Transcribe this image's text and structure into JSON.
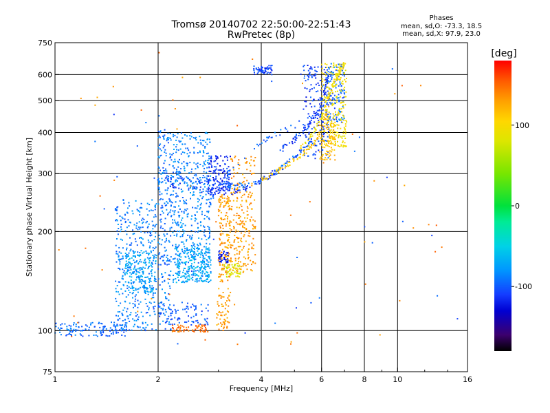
{
  "chart_data": {
    "type": "scatter",
    "title": "Tromsø 20140702 22:50:00-22:51:43",
    "subtitle": "RwPretec (8p)",
    "xlabel": "Frequency [MHz]",
    "ylabel": "Stationary phase Virtual Height [km]",
    "x_scale": "log",
    "y_scale": "log",
    "xlim": [
      1,
      16
    ],
    "ylim": [
      75,
      750
    ],
    "x_ticks": [
      1,
      2,
      4,
      6,
      8,
      10,
      16
    ],
    "x_tick_labels": [
      "1",
      "2",
      "4",
      "6",
      "8",
      "10",
      "16"
    ],
    "y_ticks": [
      75,
      100,
      200,
      300,
      400,
      500,
      600,
      750
    ],
    "y_tick_labels": [
      "75",
      "100",
      "200",
      "300",
      "400",
      "500",
      "600",
      "750"
    ],
    "grid": true,
    "stats": {
      "heading": "Phases",
      "line_o": "mean, sd,O: -73.3, 18.5",
      "line_x": "mean, sd,X:  97.9, 23.0"
    },
    "colorbar": {
      "label": "[deg]",
      "range": [
        -180,
        180
      ],
      "ticks": [
        100,
        0,
        -100
      ],
      "tick_labels": [
        "100",
        "0",
        "-100"
      ]
    },
    "clusters": [
      {
        "x": [
          0.98,
          1.62
        ],
        "y": [
          96,
          106
        ],
        "phase": -95,
        "n": 140
      },
      {
        "x": [
          1.5,
          1.98
        ],
        "y": [
          100,
          250
        ],
        "phase": -88,
        "n": 380
      },
      {
        "x": [
          1.6,
          1.98
        ],
        "y": [
          130,
          175
        ],
        "phase": -72,
        "n": 180
      },
      {
        "x": [
          2.0,
          2.18
        ],
        "y": [
          100,
          410
        ],
        "phase": -92,
        "n": 220
      },
      {
        "x": [
          2.18,
          2.85
        ],
        "y": [
          140,
          400
        ],
        "phase": -85,
        "n": 520
      },
      {
        "x": [
          2.25,
          2.85
        ],
        "y": [
          140,
          180
        ],
        "phase": -68,
        "n": 200
      },
      {
        "x": [
          2.0,
          2.8
        ],
        "y": [
          104,
          122
        ],
        "phase": -100,
        "n": 80
      },
      {
        "x": [
          2.2,
          2.8
        ],
        "y": [
          99,
          104
        ],
        "phase": 150,
        "n": 60
      },
      {
        "x": [
          2.8,
          3.25
        ],
        "y": [
          265,
          340
        ],
        "phase": -115,
        "n": 120
      },
      {
        "x": [
          3.0,
          3.25
        ],
        "y": [
          140,
          260
        ],
        "phase": 130,
        "n": 160
      },
      {
        "x": [
          3.0,
          3.2
        ],
        "y": [
          160,
          175
        ],
        "phase": -118,
        "n": 40
      },
      {
        "x": [
          3.1,
          3.5
        ],
        "y": [
          145,
          160
        ],
        "phase": 80,
        "n": 50
      },
      {
        "x": [
          3.25,
          3.85
        ],
        "y": [
          150,
          340
        ],
        "phase": 132,
        "n": 240
      },
      {
        "x": [
          2.95,
          3.25
        ],
        "y": [
          100,
          135
        ],
        "phase": 130,
        "n": 70
      },
      {
        "x": [
          3.8,
          4.3
        ],
        "y": [
          600,
          640
        ],
        "phase": -110,
        "n": 60
      },
      {
        "x": [
          5.3,
          6.3
        ],
        "y": [
          330,
          640
        ],
        "phase": -108,
        "n": 190
      },
      {
        "x": [
          6.2,
          7.0
        ],
        "y": [
          430,
          650
        ],
        "phase": -96,
        "n": 130
      },
      {
        "x": [
          6.0,
          7.1
        ],
        "y": [
          360,
          650
        ],
        "phase": 95,
        "n": 240
      },
      {
        "x": [
          5.9,
          6.6
        ],
        "y": [
          330,
          430
        ],
        "phase": 118,
        "n": 80
      },
      {
        "x": [
          1.0,
          15.0
        ],
        "y": [
          76,
          700
        ],
        "phase": 140,
        "n": 55
      },
      {
        "x": [
          1.0,
          15.0
        ],
        "y": [
          76,
          700
        ],
        "phase": -100,
        "n": 35
      }
    ],
    "traces": [
      {
        "x": [
          1.9,
          2.2,
          2.6,
          3.0,
          3.4,
          3.8,
          4.2,
          4.7,
          5.2,
          5.6
        ],
        "y": [
          285,
          289,
          287,
          280,
          275,
          280,
          292,
          320,
          350,
          380
        ],
        "phase": -100,
        "n": 140
      },
      {
        "x": [
          2.2,
          2.6,
          2.9,
          3.2,
          3.6,
          4.0,
          4.4
        ],
        "y": [
          278,
          270,
          263,
          262,
          268,
          285,
          305
        ],
        "phase": -112,
        "n": 80
      },
      {
        "x": [
          3.9,
          4.3,
          4.8,
          5.3,
          5.7,
          6.0,
          6.3
        ],
        "y": [
          285,
          300,
          320,
          345,
          370,
          410,
          480
        ],
        "phase": 112,
        "n": 90
      },
      {
        "x": [
          5.2,
          5.6,
          6.0,
          6.3,
          6.6,
          6.8,
          7.0
        ],
        "y": [
          360,
          390,
          440,
          520,
          580,
          620,
          645
        ],
        "phase": 95,
        "n": 80
      },
      {
        "x": [
          4.5,
          5.0,
          5.5,
          5.9,
          6.1,
          6.3
        ],
        "y": [
          350,
          380,
          420,
          470,
          530,
          600
        ],
        "phase": -110,
        "n": 80
      },
      {
        "x": [
          2.8,
          3.2,
          3.7,
          4.3,
          5.0,
          5.7
        ],
        "y": [
          240,
          300,
          350,
          390,
          420,
          450
        ],
        "phase": -98,
        "n": 45
      }
    ]
  }
}
